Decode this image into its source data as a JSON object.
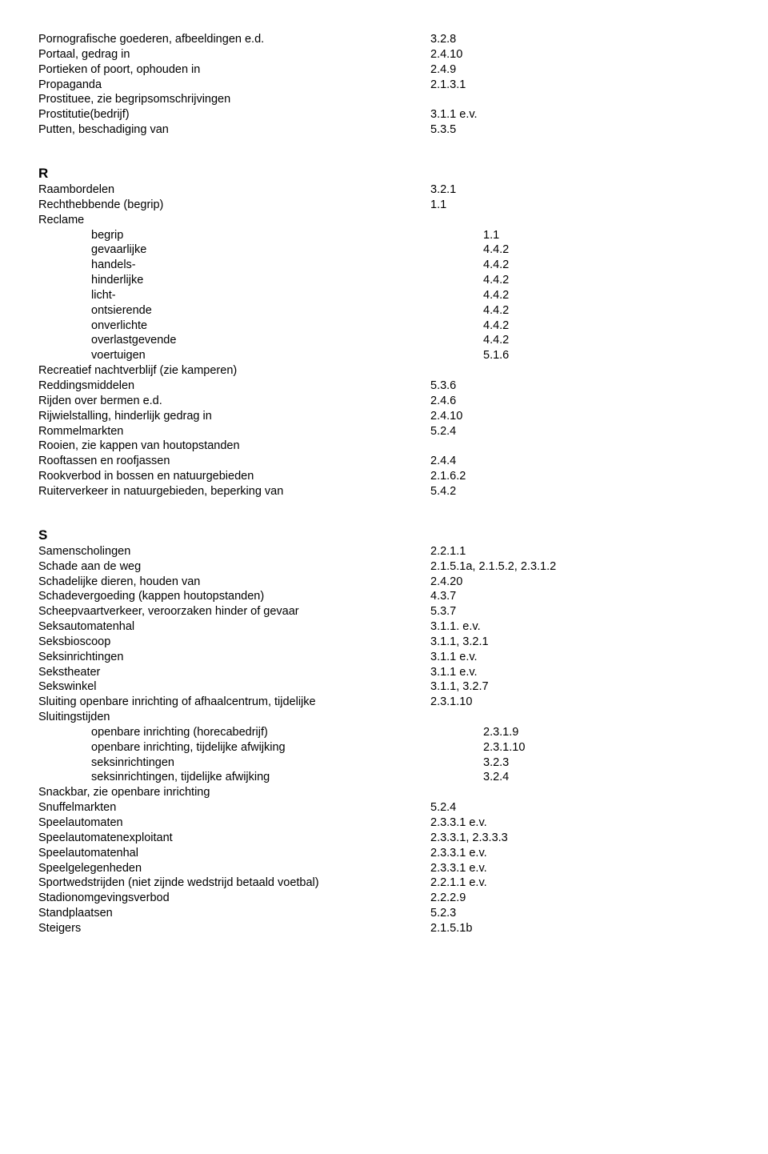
{
  "sectionP": [
    {
      "term": "Pornografische goederen, afbeeldingen e.d.",
      "val": "3.2.8"
    },
    {
      "term": "Portaal, gedrag in",
      "val": "2.4.10"
    },
    {
      "term": "Portieken of poort, ophouden in",
      "val": "2.4.9"
    },
    {
      "term": "Propaganda",
      "val": "2.1.3.1"
    },
    {
      "term": "Prostituee, zie begripsomschrijvingen",
      "val": ""
    },
    {
      "term": "Prostitutie(bedrijf)",
      "val": "3.1.1 e.v."
    },
    {
      "term": "Putten, beschadiging van",
      "val": "5.3.5"
    }
  ],
  "sectionR_letter": "R",
  "sectionR": [
    {
      "term": "Raambordelen",
      "val": "3.2.1"
    },
    {
      "term": "Rechthebbende (begrip)",
      "val": "1.1"
    },
    {
      "term": "Reclame",
      "val": ""
    },
    {
      "term": "begrip",
      "val": "1.1",
      "indent": true
    },
    {
      "term": "gevaarlijke",
      "val": "4.4.2",
      "indent": true
    },
    {
      "term": "handels-",
      "val": "4.4.2",
      "indent": true
    },
    {
      "term": "hinderlijke",
      "val": "4.4.2",
      "indent": true
    },
    {
      "term": "licht-",
      "val": "4.4.2",
      "indent": true
    },
    {
      "term": "ontsierende",
      "val": "4.4.2",
      "indent": true
    },
    {
      "term": "onverlichte",
      "val": "4.4.2",
      "indent": true
    },
    {
      "term": "overlastgevende",
      "val": "4.4.2",
      "indent": true
    },
    {
      "term": "voertuigen",
      "val": "5.1.6",
      "indent": true
    },
    {
      "term": "Recreatief nachtverblijf (zie kamperen)",
      "val": ""
    },
    {
      "term": "Reddingsmiddelen",
      "val": "5.3.6"
    },
    {
      "term": "Rijden over bermen e.d.",
      "val": "2.4.6"
    },
    {
      "term": "Rijwielstalling, hinderlijk gedrag in",
      "val": "2.4.10"
    },
    {
      "term": "Rommelmarkten",
      "val": "5.2.4"
    },
    {
      "term": "Rooien, zie kappen van houtopstanden",
      "val": ""
    },
    {
      "term": "Rooftassen en roofjassen",
      "val": "2.4.4"
    },
    {
      "term": "Rookverbod in bossen en natuurgebieden",
      "val": "2.1.6.2"
    },
    {
      "term": "Ruiterverkeer in natuurgebieden, beperking van",
      "val": "5.4.2"
    }
  ],
  "sectionS_letter": "S",
  "sectionS": [
    {
      "term": "Samenscholingen",
      "val": "2.2.1.1"
    },
    {
      "term": "Schade aan de weg",
      "val": "2.1.5.1a, 2.1.5.2, 2.3.1.2"
    },
    {
      "term": "Schadelijke dieren, houden van",
      "val": "2.4.20"
    },
    {
      "term": "Schadevergoeding (kappen houtopstanden)",
      "val": "4.3.7"
    },
    {
      "term": "Scheepvaartverkeer, veroorzaken hinder of gevaar",
      "val": "5.3.7"
    },
    {
      "term": "Seksautomatenhal",
      "val": "3.1.1. e.v."
    },
    {
      "term": "Seksbioscoop",
      "val": "3.1.1, 3.2.1"
    },
    {
      "term": "Seksinrichtingen",
      "val": "3.1.1 e.v."
    },
    {
      "term": "Sekstheater",
      "val": "3.1.1 e.v."
    },
    {
      "term": "Sekswinkel",
      "val": "3.1.1, 3.2.7"
    },
    {
      "term": "Sluiting openbare inrichting of afhaalcentrum, tijdelijke",
      "val": "2.3.1.10"
    },
    {
      "term": "Sluitingstijden",
      "val": ""
    },
    {
      "term": "openbare inrichting (horecabedrijf)",
      "val": "2.3.1.9",
      "indent": true
    },
    {
      "term": "openbare inrichting, tijdelijke afwijking",
      "val": "2.3.1.10",
      "indent": true
    },
    {
      "term": "seksinrichtingen",
      "val": "3.2.3",
      "indent": true
    },
    {
      "term": "seksinrichtingen, tijdelijke afwijking",
      "val": "3.2.4",
      "indent": true
    },
    {
      "term": "Snackbar, zie openbare inrichting",
      "val": ""
    },
    {
      "term": "Snuffelmarkten",
      "val": "5.2.4"
    },
    {
      "term": "Speelautomaten",
      "val": "2.3.3.1 e.v."
    },
    {
      "term": "Speelautomatenexploitant",
      "val": "2.3.3.1, 2.3.3.3"
    },
    {
      "term": "Speelautomatenhal",
      "val": "2.3.3.1 e.v."
    },
    {
      "term": "Speelgelegenheden",
      "val": "2.3.3.1 e.v."
    },
    {
      "term": "Sportwedstrijden (niet zijnde wedstrijd betaald voetbal)",
      "val": "2.2.1.1 e.v."
    },
    {
      "term": "Stadionomgevingsverbod",
      "val": "2.2.2.9"
    },
    {
      "term": "Standplaatsen",
      "val": "5.2.3"
    },
    {
      "term": "Steigers",
      "val": "2.1.5.1b"
    }
  ]
}
